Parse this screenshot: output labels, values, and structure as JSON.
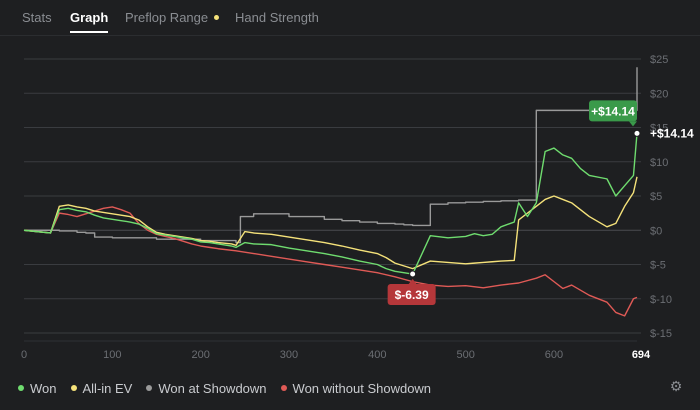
{
  "tabs": [
    {
      "label": "Stats"
    },
    {
      "label": "Graph"
    },
    {
      "label": "Preflop Range"
    },
    {
      "label": "Hand Strength"
    }
  ],
  "colors": {
    "won": "#6fdc6f",
    "allin": "#f5e27a",
    "showdown": "#9a9a9a",
    "no_showdown": "#e05a56",
    "grid": "#3a3c40",
    "axis_text": "#6b6e73",
    "badge_high": "#3a9a4a",
    "badge_low": "#b5373a",
    "tab_dot": "#f5e27a"
  },
  "icons": {
    "settings": "gear-icon"
  },
  "chart_data": {
    "type": "line",
    "xlim": [
      0,
      694
    ],
    "ylim": [
      -15,
      25
    ],
    "xticks": [
      "0",
      "100",
      "200",
      "300",
      "400",
      "500",
      "600"
    ],
    "xtick_values": [
      0,
      100,
      200,
      300,
      400,
      500,
      600
    ],
    "x_end_label": "694",
    "yticks": [
      "$25",
      "$20",
      "$15",
      "$10",
      "$5",
      "$0",
      "$-5",
      "$-10",
      "$-15"
    ],
    "ytick_values": [
      25,
      20,
      15,
      10,
      5,
      0,
      -5,
      -10,
      -15
    ],
    "series": [
      {
        "name": "Won",
        "color": "#6fdc6f",
        "x": [
          0,
          15,
          30,
          40,
          50,
          60,
          70,
          80,
          90,
          100,
          110,
          120,
          130,
          140,
          150,
          160,
          170,
          180,
          190,
          200,
          210,
          220,
          235,
          240,
          250,
          260,
          280,
          300,
          320,
          340,
          360,
          380,
          400,
          410,
          420,
          430,
          440,
          460,
          480,
          500,
          510,
          520,
          530,
          540,
          555,
          560,
          570,
          580,
          590,
          600,
          610,
          620,
          630,
          640,
          660,
          670,
          680,
          690,
          694
        ],
        "y": [
          0,
          -0.2,
          -0.4,
          3.0,
          3.2,
          2.9,
          2.7,
          2.2,
          1.8,
          1.6,
          1.4,
          1.2,
          0.9,
          0.3,
          -0.5,
          -0.7,
          -0.9,
          -1.1,
          -1.3,
          -1.7,
          -1.8,
          -2.0,
          -2.3,
          -2.5,
          -1.8,
          -2.0,
          -2.1,
          -2.6,
          -3.0,
          -3.4,
          -3.9,
          -4.5,
          -5.0,
          -5.6,
          -6.0,
          -6.2,
          -6.39,
          -0.8,
          -1.1,
          -0.9,
          -0.5,
          -0.8,
          -0.6,
          0.5,
          1.2,
          4.0,
          2.0,
          4.0,
          11.5,
          12.0,
          11.0,
          10.5,
          9.0,
          8.0,
          7.5,
          5.0,
          6.5,
          8.0,
          14.14
        ]
      },
      {
        "name": "All-in EV",
        "color": "#f5e27a",
        "x": [
          0,
          15,
          30,
          40,
          50,
          60,
          70,
          80,
          90,
          100,
          110,
          120,
          130,
          140,
          150,
          160,
          170,
          180,
          190,
          200,
          210,
          220,
          235,
          240,
          250,
          260,
          280,
          300,
          320,
          340,
          360,
          380,
          400,
          410,
          420,
          430,
          440,
          460,
          480,
          500,
          510,
          520,
          530,
          540,
          555,
          560,
          570,
          580,
          590,
          600,
          610,
          620,
          630,
          640,
          660,
          670,
          680,
          690,
          694
        ],
        "y": [
          0,
          -0.2,
          -0.4,
          3.5,
          3.7,
          3.4,
          3.2,
          2.8,
          2.6,
          2.4,
          2.2,
          2.0,
          1.5,
          0.5,
          -0.3,
          -0.6,
          -0.8,
          -1.0,
          -1.2,
          -1.5,
          -1.6,
          -1.8,
          -2.0,
          -2.2,
          -0.2,
          -0.4,
          -0.6,
          -1.0,
          -1.4,
          -1.8,
          -2.3,
          -2.9,
          -3.4,
          -4.0,
          -4.8,
          -5.2,
          -5.6,
          -4.5,
          -4.7,
          -4.9,
          -4.8,
          -4.7,
          -4.6,
          -4.5,
          -4.4,
          1.5,
          2.5,
          3.5,
          4.5,
          5.0,
          4.5,
          4.0,
          3.0,
          2.0,
          0.5,
          1.0,
          3.5,
          5.5,
          7.8
        ]
      },
      {
        "name": "Won at Showdown",
        "color": "#9a9a9a",
        "x": [
          0,
          40,
          60,
          70,
          80,
          100,
          150,
          200,
          240,
          245,
          260,
          300,
          340,
          360,
          380,
          400,
          420,
          430,
          440,
          460,
          480,
          500,
          520,
          540,
          560,
          580,
          600,
          620,
          640,
          660,
          680,
          690,
          694
        ],
        "y": [
          0,
          -0.1,
          -0.3,
          -0.4,
          -1.0,
          -1.1,
          -1.3,
          -1.5,
          -1.8,
          2.0,
          2.4,
          2.0,
          1.6,
          1.4,
          1.2,
          1.0,
          0.9,
          0.8,
          0.7,
          3.8,
          4.0,
          4.1,
          4.2,
          4.3,
          4.4,
          17.5,
          17.5,
          17.5,
          17.5,
          17.5,
          17.5,
          17.5,
          23.8
        ]
      },
      {
        "name": "Won without Showdown",
        "color": "#e05a56",
        "x": [
          0,
          15,
          30,
          40,
          50,
          60,
          70,
          80,
          90,
          100,
          110,
          120,
          130,
          140,
          150,
          160,
          170,
          180,
          190,
          200,
          210,
          220,
          240,
          260,
          280,
          300,
          320,
          340,
          360,
          380,
          400,
          420,
          440,
          460,
          480,
          500,
          520,
          540,
          560,
          580,
          590,
          600,
          610,
          620,
          640,
          660,
          670,
          680,
          690,
          694
        ],
        "y": [
          0,
          -0.2,
          -0.4,
          2.5,
          2.3,
          2.0,
          2.4,
          2.8,
          3.2,
          3.4,
          3.0,
          2.5,
          1.0,
          0.0,
          -0.6,
          -0.9,
          -1.2,
          -1.6,
          -2.0,
          -2.3,
          -2.5,
          -2.7,
          -3.0,
          -3.4,
          -3.8,
          -4.2,
          -4.6,
          -5.0,
          -5.4,
          -5.8,
          -6.2,
          -6.8,
          -7.5,
          -8.0,
          -8.2,
          -8.1,
          -8.4,
          -8.0,
          -7.7,
          -7.0,
          -6.5,
          -7.5,
          -8.5,
          -8.0,
          -9.5,
          -10.5,
          -12.0,
          -12.5,
          -10.0,
          -9.8
        ]
      }
    ],
    "annotations": [
      {
        "label": "+$14.14",
        "x": 694,
        "y": 14.14,
        "kind": "high"
      },
      {
        "label": "$-6.39",
        "x": 440,
        "y": -6.39,
        "kind": "low"
      }
    ],
    "end_value_label": "+$14.14",
    "grid": "horizontal"
  }
}
